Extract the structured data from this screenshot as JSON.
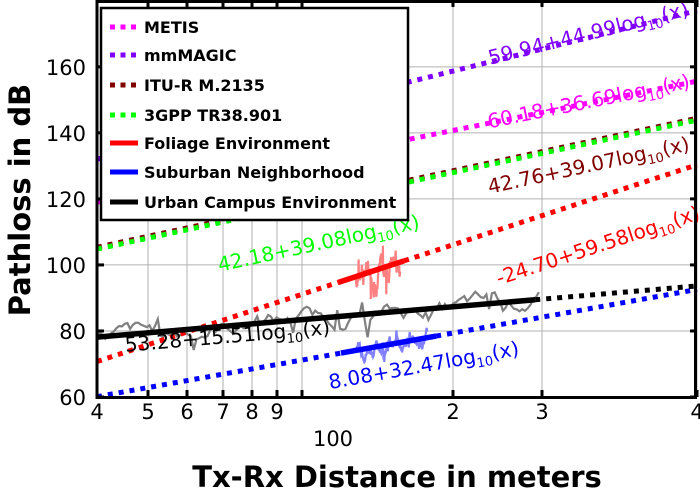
{
  "chart_data": {
    "type": "line",
    "xscale": "log",
    "xlabel": "Tx-Rx Distance in meters",
    "ylabel": "Pathloss in dB",
    "xlim": [
      40,
      400
    ],
    "ylim": [
      60,
      180
    ],
    "grid": true,
    "legend_placement": "top-left",
    "x_ticks": [
      {
        "value": 40,
        "label": "4"
      },
      {
        "value": 50,
        "label": "5"
      },
      {
        "value": 60,
        "label": "6"
      },
      {
        "value": 70,
        "label": "7"
      },
      {
        "value": 80,
        "label": "8"
      },
      {
        "value": 90,
        "label": "9"
      },
      {
        "value": 100,
        "label": ""
      },
      {
        "value": 200,
        "label": "2"
      },
      {
        "value": 300,
        "label": "3"
      },
      {
        "value": 400,
        "label": "4"
      }
    ],
    "x_decade_label": "100",
    "y_ticks": [
      60,
      80,
      100,
      120,
      140,
      160
    ],
    "models": [
      {
        "name": "METIS",
        "a": 60.18,
        "b": 36.69,
        "color": "#ff00ff",
        "style": "dotted",
        "eq": {
          "prefix": "60.18+36.69log",
          "sub": "10",
          "suffix": "(x)"
        }
      },
      {
        "name": "mmMAGIC",
        "a": 59.94,
        "b": 44.99,
        "color": "#8000ff",
        "style": "dotted",
        "eq": {
          "prefix": "59.94+44.99log",
          "sub": "10",
          "suffix": "(x)"
        }
      },
      {
        "name": "ITU-R M.2135",
        "a": 42.76,
        "b": 39.07,
        "color": "#800000",
        "style": "dotted",
        "eq": {
          "prefix": "42.76+39.07log",
          "sub": "10",
          "suffix": "(x)"
        }
      },
      {
        "name": "3GPP TR38.901",
        "a": 42.18,
        "b": 39.08,
        "color": "#00ff00",
        "style": "dotted",
        "eq": {
          "prefix": "42.18+39.08log",
          "sub": "10",
          "suffix": "(x)"
        }
      },
      {
        "name": "Foliage Environment",
        "a": -24.7,
        "b": 59.58,
        "color": "#ff0000",
        "style": "solid",
        "fit_range": [
          101,
          130
        ],
        "measured_color": "#ff8080",
        "eq": {
          "prefix": "-24.70+59.58log",
          "sub": "10",
          "suffix": "(x)"
        }
      },
      {
        "name": "Suburban Neighborhood",
        "a": 8.08,
        "b": 32.47,
        "color": "#0000ff",
        "style": "solid",
        "fit_range": [
          102,
          147
        ],
        "measured_color": "#8080ff",
        "eq": {
          "prefix": "8.08+32.47log",
          "sub": "10",
          "suffix": "(x)"
        }
      },
      {
        "name": "Urban Campus Environment",
        "a": 53.28,
        "b": 15.51,
        "color": "#000000",
        "style": "solid",
        "fit_range": [
          40,
          215
        ],
        "measured_color": "#808080",
        "eq": {
          "prefix": "53.28+15.51log",
          "sub": "10",
          "suffix": "(x)"
        }
      }
    ]
  }
}
